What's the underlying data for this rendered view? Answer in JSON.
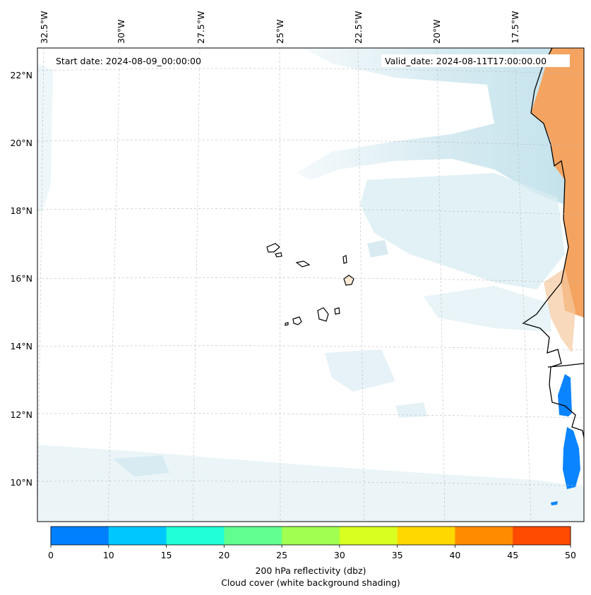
{
  "map": {
    "start_date_label": "Start date: 2024-08-09_00:00:00",
    "valid_date_label": "Valid_date: 2024-08-11T17:00:00.00",
    "lon_labels": [
      "32.5°W",
      "30°W",
      "27.5°W",
      "25°W",
      "22.5°W",
      "20°W",
      "17.5°W"
    ],
    "lat_labels": [
      "22°N",
      "20°N",
      "18°N",
      "16°N",
      "14°N",
      "12°N",
      "10°N"
    ],
    "land_color_reflectivity_high": "#f4a460",
    "precip_color_low": "#0a84ff"
  },
  "colorbar": {
    "ticks": [
      "0",
      "10",
      "15",
      "20",
      "25",
      "30",
      "35",
      "40",
      "45",
      "50"
    ],
    "colors": [
      "#0080ff",
      "#00c8ff",
      "#20ffd8",
      "#60ff90",
      "#a0ff50",
      "#d8ff20",
      "#ffd800",
      "#ff8c00",
      "#ff4a00"
    ],
    "label_line1": "200 hPa reflectivity (dbz)",
    "label_line2": "Cloud cover (white background shading)"
  }
}
